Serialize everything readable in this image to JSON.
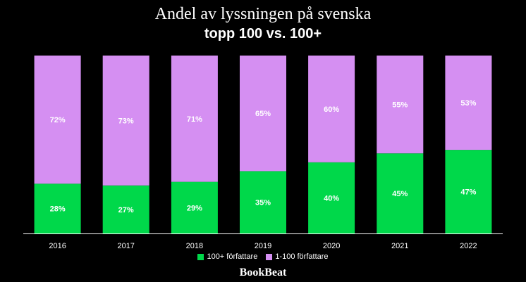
{
  "chart_data": {
    "type": "bar",
    "stacked": true,
    "title": "Andel av lyssningen på svenska",
    "subtitle": "topp 100 vs. 100+",
    "categories": [
      "2016",
      "2017",
      "2018",
      "2019",
      "2020",
      "2021",
      "2022"
    ],
    "series": [
      {
        "name": "100+ författare",
        "color": "#00d84a",
        "values": [
          28,
          27,
          29,
          35,
          40,
          45,
          47
        ],
        "labels": [
          "28%",
          "27%",
          "29%",
          "35%",
          "40%",
          "45%",
          "47%"
        ]
      },
      {
        "name": "1-100 författare",
        "color": "#d58ff2",
        "values": [
          72,
          73,
          71,
          65,
          60,
          55,
          53
        ],
        "labels": [
          "72%",
          "73%",
          "71%",
          "65%",
          "60%",
          "55%",
          "53%"
        ]
      }
    ],
    "ylim": [
      0,
      100
    ],
    "grid": false,
    "legend": "bottom-center"
  },
  "brand": "BookBeat"
}
